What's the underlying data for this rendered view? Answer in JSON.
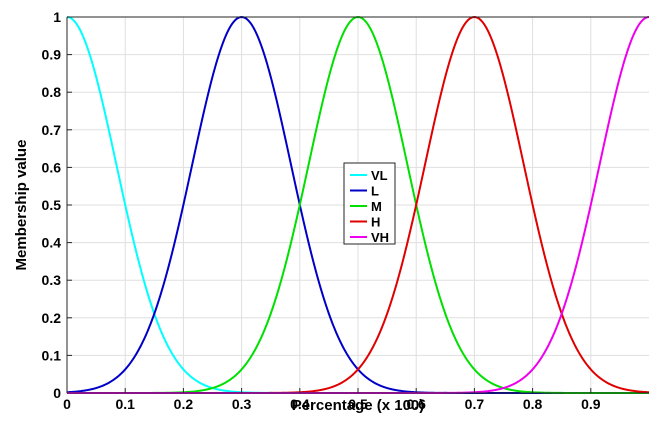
{
  "chart_data": {
    "type": "line",
    "xlabel": "Percentage (x 100)",
    "ylabel": "Membership value",
    "xlim": [
      0,
      1
    ],
    "ylim": [
      0,
      1
    ],
    "x_ticks": [
      "0",
      "0.1",
      "0.2",
      "0.3",
      "0.4",
      "0.5",
      "0.6",
      "0.7",
      "0.8",
      "0.9"
    ],
    "y_ticks": [
      "0",
      "0.1",
      "0.2",
      "0.3",
      "0.4",
      "0.5",
      "0.6",
      "0.7",
      "0.8",
      "0.9",
      "1"
    ],
    "grid": true,
    "legend_position": "center",
    "series_shape": "gaussian",
    "sigma": 0.085,
    "series": [
      {
        "name": "VL",
        "center": 0.0,
        "color": "#00ffff"
      },
      {
        "name": "L",
        "center": 0.3,
        "color": "#0000c8"
      },
      {
        "name": "M",
        "center": 0.5,
        "color": "#00e000"
      },
      {
        "name": "H",
        "center": 0.7,
        "color": "#e00000"
      },
      {
        "name": "VH",
        "center": 1.0,
        "color": "#ee00ee"
      }
    ]
  }
}
